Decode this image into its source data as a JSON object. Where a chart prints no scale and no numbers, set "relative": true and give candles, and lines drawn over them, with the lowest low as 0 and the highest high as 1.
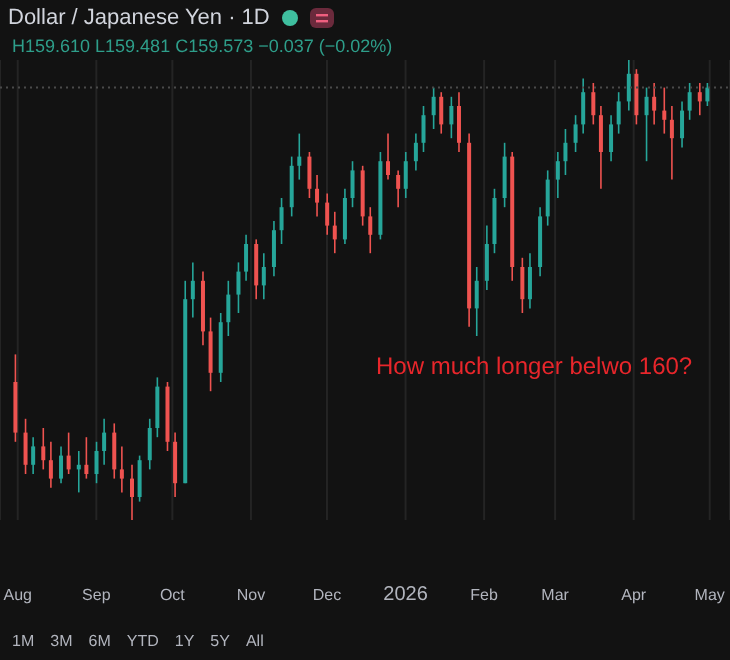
{
  "chart_data": {
    "type": "candlestick",
    "title": "Dollar / Japanese Yen · 1D",
    "subtitle": "H159.610 L159.481 C159.573 −0.037 (−0.02%)",
    "relative": true,
    "annotations": [
      "How much longer belwo 160?",
      "1M",
      "3M",
      "6M",
      "YTD",
      "1Y",
      "5Y",
      "All"
    ],
    "xlim": [
      "2025-07-25",
      "2026-05-09"
    ],
    "xticks": [
      {
        "value": "2025-08-01",
        "label": "Aug"
      },
      {
        "value": "2025-09-01",
        "label": "Sep"
      },
      {
        "value": "2025-10-01",
        "label": "Oct"
      },
      {
        "value": "2025-11-01",
        "label": "Nov"
      },
      {
        "value": "2025-12-01",
        "label": "Dec"
      },
      {
        "value": "2026-01-01",
        "label": "2026"
      },
      {
        "value": "2026-02-01",
        "label": "Feb"
      },
      {
        "value": "2026-03-01",
        "label": "Mar"
      },
      {
        "value": "2026-04-01",
        "label": "Apr"
      },
      {
        "value": "2026-05-01",
        "label": "May"
      }
    ],
    "grid": "x",
    "ref_lines": [
      {
        "axis": "y",
        "value": 0.94,
        "line_style": "dotted"
      }
    ],
    "x": [
      "2025-07-31",
      "2025-08-04",
      "2025-08-07",
      "2025-08-11",
      "2025-08-14",
      "2025-08-18",
      "2025-08-21",
      "2025-08-25",
      "2025-08-28",
      "2025-09-01",
      "2025-09-04",
      "2025-09-08",
      "2025-09-11",
      "2025-09-15",
      "2025-09-18",
      "2025-09-22",
      "2025-09-25",
      "2025-09-29",
      "2025-10-02",
      "2025-10-06",
      "2025-10-09",
      "2025-10-13",
      "2025-10-16",
      "2025-10-20",
      "2025-10-23",
      "2025-10-27",
      "2025-10-30",
      "2025-11-03",
      "2025-11-06",
      "2025-11-10",
      "2025-11-13",
      "2025-11-17",
      "2025-11-20",
      "2025-11-24",
      "2025-11-27",
      "2025-12-01",
      "2025-12-04",
      "2025-12-08",
      "2025-12-11",
      "2025-12-15",
      "2025-12-18",
      "2025-12-22",
      "2025-12-25",
      "2025-12-29",
      "2026-01-01",
      "2026-01-05",
      "2026-01-08",
      "2026-01-12",
      "2026-01-15",
      "2026-01-19",
      "2026-01-22",
      "2026-01-26",
      "2026-01-29",
      "2026-02-02",
      "2026-02-05",
      "2026-02-09",
      "2026-02-12",
      "2026-02-16",
      "2026-02-19",
      "2026-02-23",
      "2026-02-26",
      "2026-03-02",
      "2026-03-05",
      "2026-03-09",
      "2026-03-12",
      "2026-03-16",
      "2026-03-19",
      "2026-03-23",
      "2026-03-26",
      "2026-03-30",
      "2026-04-02",
      "2026-04-06",
      "2026-04-09",
      "2026-04-13",
      "2026-04-16",
      "2026-04-20",
      "2026-04-23",
      "2026-04-27",
      "2026-04-30"
    ],
    "ohlc": [
      [
        0.3,
        0.36,
        0.17,
        0.19
      ],
      [
        0.19,
        0.22,
        0.1,
        0.12
      ],
      [
        0.12,
        0.18,
        0.1,
        0.16
      ],
      [
        0.16,
        0.2,
        0.11,
        0.13
      ],
      [
        0.13,
        0.17,
        0.07,
        0.09
      ],
      [
        0.09,
        0.16,
        0.08,
        0.14
      ],
      [
        0.14,
        0.19,
        0.1,
        0.11
      ],
      [
        0.11,
        0.15,
        0.06,
        0.12
      ],
      [
        0.12,
        0.18,
        0.09,
        0.1
      ],
      [
        0.1,
        0.17,
        0.08,
        0.15
      ],
      [
        0.15,
        0.22,
        0.12,
        0.19
      ],
      [
        0.19,
        0.21,
        0.09,
        0.11
      ],
      [
        0.11,
        0.16,
        0.06,
        0.09
      ],
      [
        0.09,
        0.12,
        0.0,
        0.05
      ],
      [
        0.05,
        0.14,
        0.04,
        0.13
      ],
      [
        0.13,
        0.22,
        0.11,
        0.2
      ],
      [
        0.2,
        0.31,
        0.18,
        0.29
      ],
      [
        0.29,
        0.3,
        0.15,
        0.17
      ],
      [
        0.17,
        0.19,
        0.05,
        0.08
      ],
      [
        0.08,
        0.52,
        0.08,
        0.48
      ],
      [
        0.48,
        0.56,
        0.44,
        0.52
      ],
      [
        0.52,
        0.54,
        0.38,
        0.41
      ],
      [
        0.41,
        0.44,
        0.28,
        0.32
      ],
      [
        0.32,
        0.45,
        0.3,
        0.43
      ],
      [
        0.43,
        0.52,
        0.4,
        0.49
      ],
      [
        0.49,
        0.56,
        0.45,
        0.54
      ],
      [
        0.54,
        0.62,
        0.52,
        0.6
      ],
      [
        0.6,
        0.61,
        0.48,
        0.51
      ],
      [
        0.51,
        0.58,
        0.48,
        0.55
      ],
      [
        0.55,
        0.65,
        0.53,
        0.63
      ],
      [
        0.63,
        0.7,
        0.6,
        0.68
      ],
      [
        0.68,
        0.79,
        0.66,
        0.77
      ],
      [
        0.77,
        0.84,
        0.74,
        0.79
      ],
      [
        0.79,
        0.8,
        0.7,
        0.72
      ],
      [
        0.72,
        0.75,
        0.66,
        0.69
      ],
      [
        0.69,
        0.71,
        0.62,
        0.64
      ],
      [
        0.64,
        0.67,
        0.58,
        0.61
      ],
      [
        0.61,
        0.72,
        0.6,
        0.7
      ],
      [
        0.7,
        0.78,
        0.68,
        0.76
      ],
      [
        0.76,
        0.77,
        0.64,
        0.66
      ],
      [
        0.66,
        0.68,
        0.58,
        0.62
      ],
      [
        0.62,
        0.8,
        0.61,
        0.78
      ],
      [
        0.78,
        0.84,
        0.74,
        0.75
      ],
      [
        0.75,
        0.76,
        0.68,
        0.72
      ],
      [
        0.72,
        0.8,
        0.7,
        0.78
      ],
      [
        0.78,
        0.84,
        0.76,
        0.82
      ],
      [
        0.82,
        0.9,
        0.8,
        0.88
      ],
      [
        0.88,
        0.94,
        0.85,
        0.92
      ],
      [
        0.92,
        0.93,
        0.84,
        0.86
      ],
      [
        0.86,
        0.92,
        0.83,
        0.9
      ],
      [
        0.9,
        0.93,
        0.8,
        0.82
      ],
      [
        0.82,
        0.84,
        0.42,
        0.46
      ],
      [
        0.46,
        0.55,
        0.4,
        0.52
      ],
      [
        0.52,
        0.64,
        0.5,
        0.6
      ],
      [
        0.6,
        0.72,
        0.58,
        0.7
      ],
      [
        0.7,
        0.82,
        0.68,
        0.79
      ],
      [
        0.79,
        0.8,
        0.52,
        0.55
      ],
      [
        0.55,
        0.57,
        0.45,
        0.48
      ],
      [
        0.48,
        0.58,
        0.46,
        0.55
      ],
      [
        0.55,
        0.68,
        0.53,
        0.66
      ],
      [
        0.66,
        0.76,
        0.64,
        0.74
      ],
      [
        0.74,
        0.8,
        0.7,
        0.78
      ],
      [
        0.78,
        0.85,
        0.75,
        0.82
      ],
      [
        0.82,
        0.88,
        0.8,
        0.86
      ],
      [
        0.86,
        0.96,
        0.84,
        0.93
      ],
      [
        0.93,
        0.95,
        0.86,
        0.88
      ],
      [
        0.88,
        0.9,
        0.72,
        0.8
      ],
      [
        0.8,
        0.88,
        0.78,
        0.86
      ],
      [
        0.86,
        0.93,
        0.84,
        0.91
      ],
      [
        0.91,
        1.0,
        0.89,
        0.97
      ],
      [
        0.97,
        0.98,
        0.86,
        0.88
      ],
      [
        0.88,
        0.94,
        0.78,
        0.92
      ],
      [
        0.92,
        0.95,
        0.86,
        0.89
      ],
      [
        0.89,
        0.94,
        0.84,
        0.87
      ],
      [
        0.87,
        0.9,
        0.74,
        0.83
      ],
      [
        0.83,
        0.91,
        0.81,
        0.89
      ],
      [
        0.89,
        0.95,
        0.87,
        0.93
      ],
      [
        0.93,
        0.95,
        0.88,
        0.91
      ],
      [
        0.91,
        0.95,
        0.9,
        0.94
      ]
    ]
  }
}
